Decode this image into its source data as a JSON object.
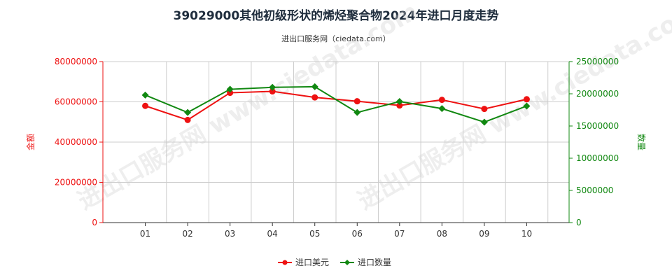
{
  "title": "39029000其他初级形状的烯烃聚合物2024年进口月度走势",
  "subtitle": "进出口服务网（ciedata.com）",
  "watermark": "进出口服务网 www.ciedata.com",
  "colors": {
    "amount": "#ee1111",
    "quantity": "#118811",
    "grid": "#cccccc"
  },
  "chart_data": {
    "type": "line",
    "categories": [
      "01",
      "02",
      "03",
      "04",
      "05",
      "06",
      "07",
      "08",
      "09",
      "10"
    ],
    "y_left": {
      "label": "金额",
      "ylim": [
        0,
        80000000
      ],
      "ticks": [
        "0",
        "20000000",
        "40000000",
        "60000000",
        "80000000"
      ]
    },
    "y_right": {
      "label": "数量",
      "ylim": [
        0,
        25000000
      ],
      "ticks": [
        "0",
        "5000000",
        "10000000",
        "15000000",
        "20000000",
        "25000000"
      ]
    },
    "grid": true,
    "legend": "bottom-center",
    "series": [
      {
        "name": "进口美元",
        "axis": "left",
        "values": [
          58000000,
          51000000,
          64500000,
          65200000,
          62200000,
          60300000,
          58200000,
          61000000,
          56500000,
          61300000
        ]
      },
      {
        "name": "进口数量",
        "axis": "right",
        "values": [
          19800000,
          17100000,
          20700000,
          21000000,
          21100000,
          17100000,
          18800000,
          17700000,
          15600000,
          18100000
        ]
      }
    ]
  }
}
